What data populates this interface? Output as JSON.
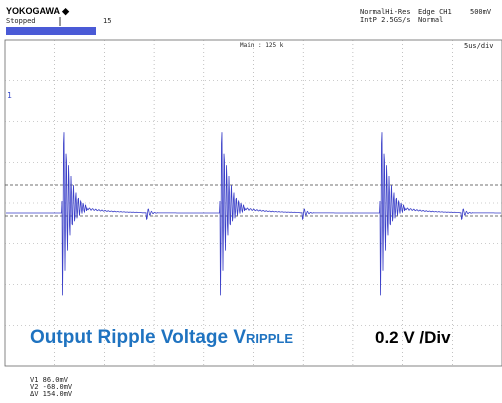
{
  "header": {
    "brand": "YOKOGAWA ◆",
    "status": "Stopped",
    "count": "15",
    "mode": "NormalHi-Res",
    "sample_rate": "IntP 2.5GS/s",
    "trigger": "Edge CH1",
    "trigger_level": "500mV",
    "trigger_mode": "Normal"
  },
  "screen": {
    "main": "Main : 125 k",
    "timebase": "5us/div",
    "channel_marker": "1"
  },
  "caption": {
    "label": "Output Ripple Voltage V",
    "subscript": "RIPPLE",
    "scale": "0.2 V /Div"
  },
  "cursors": [
    "V1  86.0mV",
    "V2  -68.0mV",
    "ΔV  154.0mV"
  ]
}
